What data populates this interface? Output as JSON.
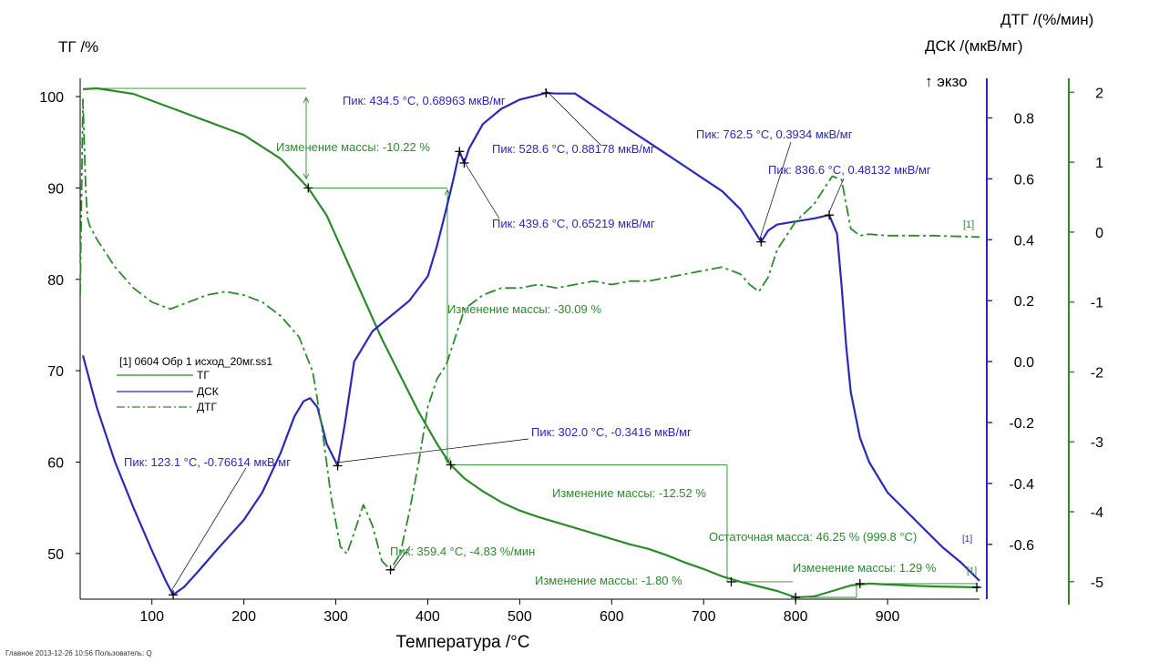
{
  "chart_data": {
    "type": "line",
    "title": "",
    "xlabel": "Температура /°C",
    "xlim": [
      22,
      1000
    ],
    "x_ticks": [
      100,
      200,
      300,
      400,
      500,
      600,
      700,
      800,
      900
    ],
    "axes": {
      "tg": {
        "label": "ТГ /%",
        "ylim": [
          45,
          102
        ],
        "ticks": [
          50,
          60,
          70,
          80,
          90,
          100
        ]
      },
      "dsc": {
        "label": "ДСК /(мкВ/мг)",
        "exo_label": "↑ экзо",
        "ylim": [
          -0.78,
          0.93
        ],
        "ticks": [
          "0.8",
          "0.6",
          "0.4",
          "0.2",
          "0.0",
          "-0.2",
          "-0.4",
          "-0.6"
        ]
      },
      "dtg": {
        "label": "ДТГ /(%/мин)",
        "ylim": [
          -5.25,
          2.2
        ],
        "ticks": [
          "2",
          "1",
          "0",
          "-1",
          "-2",
          "-3",
          "-4",
          "-5"
        ]
      }
    },
    "colors": {
      "tg": "#2c8a2c",
      "dsc": "#2a2ab4",
      "dtg": "#2c8a2c"
    },
    "series": [
      {
        "name": "ТГ",
        "axis": "tg",
        "style": "solid",
        "x": [
          25,
          40,
          80,
          120,
          160,
          200,
          240,
          270,
          290,
          310,
          330,
          350,
          370,
          390,
          410,
          425,
          440,
          460,
          480,
          500,
          520,
          540,
          560,
          580,
          600,
          620,
          640,
          660,
          680,
          700,
          720,
          740,
          760,
          780,
          800,
          820,
          840,
          860,
          880,
          900,
          920,
          950,
          1000
        ],
        "y": [
          100.8,
          100.9,
          100.3,
          98.8,
          97.3,
          95.8,
          93.2,
          90.0,
          87.0,
          82.5,
          78.0,
          73.5,
          69.5,
          65.5,
          62.0,
          59.7,
          58.2,
          56.8,
          55.6,
          54.7,
          54.0,
          53.4,
          52.8,
          52.2,
          51.6,
          51.0,
          50.5,
          49.8,
          49.0,
          48.3,
          47.5,
          46.9,
          46.4,
          45.9,
          45.2,
          45.3,
          45.9,
          46.5,
          46.7,
          46.6,
          46.5,
          46.4,
          46.3
        ]
      },
      {
        "name": "ДСК",
        "axis": "dsc",
        "style": "solid",
        "x": [
          25,
          40,
          60,
          80,
          100,
          115,
          123,
          135,
          150,
          170,
          200,
          220,
          240,
          255,
          265,
          272,
          280,
          290,
          302,
          310,
          320,
          340,
          360,
          380,
          400,
          410,
          420,
          428,
          434.5,
          439.6,
          445,
          460,
          480,
          500,
          520,
          528.6,
          540,
          560,
          580,
          600,
          620,
          640,
          660,
          680,
          700,
          720,
          740,
          755,
          762.5,
          770,
          780,
          800,
          820,
          836.6,
          845,
          850,
          855,
          860,
          870,
          880,
          900,
          920,
          940,
          960,
          980,
          1000
        ],
        "y": [
          0.02,
          -0.15,
          -0.33,
          -0.48,
          -0.62,
          -0.72,
          -0.766,
          -0.74,
          -0.69,
          -0.62,
          -0.52,
          -0.43,
          -0.3,
          -0.18,
          -0.13,
          -0.12,
          -0.15,
          -0.27,
          -0.342,
          -0.2,
          0.0,
          0.1,
          0.15,
          0.2,
          0.28,
          0.38,
          0.5,
          0.6,
          0.69,
          0.652,
          0.7,
          0.78,
          0.83,
          0.86,
          0.875,
          0.882,
          0.88,
          0.88,
          0.84,
          0.8,
          0.76,
          0.72,
          0.68,
          0.64,
          0.6,
          0.56,
          0.5,
          0.43,
          0.393,
          0.43,
          0.45,
          0.46,
          0.47,
          0.481,
          0.42,
          0.25,
          0.05,
          -0.1,
          -0.25,
          -0.33,
          -0.43,
          -0.49,
          -0.55,
          -0.61,
          -0.66,
          -0.72
        ]
      },
      {
        "name": "ДТГ",
        "axis": "dtg",
        "style": "dashdot",
        "x": [
          22,
          25,
          28,
          30,
          32,
          40,
          60,
          80,
          100,
          120,
          140,
          160,
          180,
          200,
          220,
          240,
          260,
          275,
          285,
          295,
          305,
          312,
          320,
          330,
          340,
          350,
          359.4,
          370,
          380,
          390,
          400,
          410,
          420,
          430,
          440,
          460,
          480,
          500,
          520,
          540,
          560,
          580,
          600,
          620,
          640,
          660,
          680,
          700,
          720,
          740,
          750,
          760,
          770,
          780,
          800,
          820,
          830,
          840,
          850,
          860,
          870,
          880,
          900,
          950,
          1000
        ],
        "y": [
          -0.9,
          1.9,
          0.6,
          0.2,
          0.1,
          -0.1,
          -0.5,
          -0.8,
          -1.0,
          -1.1,
          -1.0,
          -0.9,
          -0.85,
          -0.9,
          -1.0,
          -1.2,
          -1.5,
          -2.0,
          -2.8,
          -3.8,
          -4.5,
          -4.6,
          -4.3,
          -3.9,
          -4.2,
          -4.7,
          -4.83,
          -4.6,
          -4.0,
          -3.3,
          -2.5,
          -2.1,
          -1.9,
          -1.5,
          -1.1,
          -0.9,
          -0.8,
          -0.8,
          -0.75,
          -0.8,
          -0.75,
          -0.7,
          -0.75,
          -0.7,
          -0.7,
          -0.65,
          -0.6,
          -0.55,
          -0.5,
          -0.6,
          -0.75,
          -0.85,
          -0.65,
          -0.25,
          0.15,
          0.4,
          0.6,
          0.8,
          0.75,
          0.05,
          -0.05,
          -0.03,
          -0.05,
          -0.05,
          -0.07
        ]
      }
    ],
    "legend": {
      "file": "[1] 0604 Обр 1 исход_20мг.ss1",
      "items": [
        "ТГ",
        "ДСК",
        "ДТГ"
      ],
      "placement": "left"
    },
    "annotations": {
      "peak_dsc_1": "Пик: 123.1 °C, -0.76614 мкВ/мг",
      "peak_dsc_2": "Пик: 302.0 °C, -0.3416 мкВ/мг",
      "peak_dsc_3": "Пик: 434.5 °C, 0.68963 мкВ/мг",
      "peak_dsc_4": "Пик: 439.6 °C, 0.65219 мкВ/мг",
      "peak_dsc_5": "Пик: 528.6 °C, 0.88178 мкВ/мг",
      "peak_dsc_6": "Пик: 762.5 °C, 0.3934 мкВ/мг",
      "peak_dsc_7": "Пик: 836.6 °C, 0.48132 мкВ/мг",
      "peak_dtg": "Пик: 359.4 °C, -4.83 %/мин",
      "mass_change_1": "Изменение массы: -10.22 %",
      "mass_change_2": "Изменение массы: -30.09 %",
      "mass_change_3": "Изменение массы: -12.52 %",
      "mass_change_4": "Изменение массы: -1.80 %",
      "mass_change_5": "Изменение массы: 1.29 %",
      "residual_mass": "Остаточная масса: 46.25 % (999.8 °C)",
      "curve_tag": "[1]"
    }
  },
  "footer": "Главное   2013-12-26 10:56   Пользователь: Q"
}
